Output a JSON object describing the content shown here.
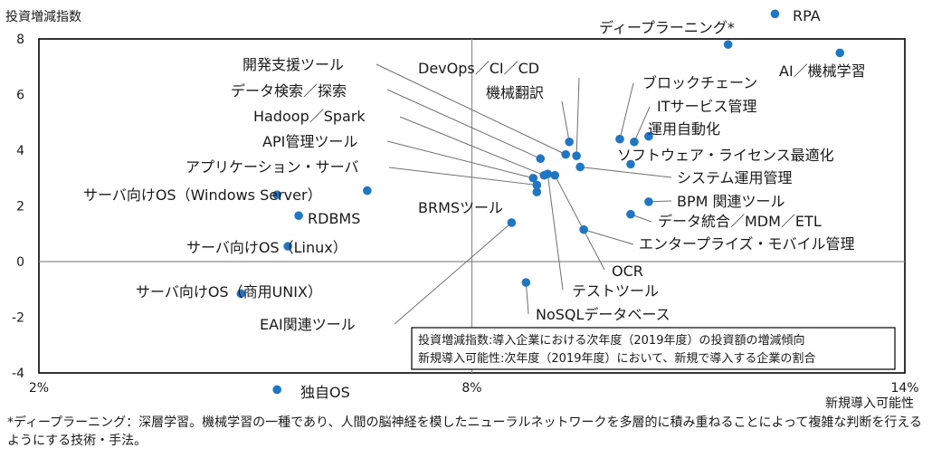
{
  "chart_data": {
    "type": "scatter",
    "title": "",
    "ylabel": "投資増減指数",
    "xlabel": "新規導入可能性",
    "xlim": [
      2,
      14
    ],
    "ylim": [
      -4,
      8
    ],
    "x_ticks": [
      "2%",
      "8%",
      "14%"
    ],
    "y_ticks": [
      "8",
      "6",
      "4",
      "2",
      "0",
      "-2",
      "-4"
    ],
    "crosshair": {
      "x": 8,
      "y": 0
    },
    "point_color": "#1f77c4",
    "points": [
      {
        "label": "RPA",
        "x": 12.2,
        "y": 8.9
      },
      {
        "label": "ディープラーニング*",
        "x": 11.55,
        "y": 7.8
      },
      {
        "label": "AI／機械学習",
        "x": 13.1,
        "y": 7.5
      },
      {
        "label": "開発支援ツール",
        "x": 9.3,
        "y": 3.85
      },
      {
        "label": "データ検索／探索",
        "x": 8.95,
        "y": 3.7
      },
      {
        "label": "DevOps／CI／CD",
        "x": 9.45,
        "y": 3.8
      },
      {
        "label": "機械翻訳",
        "x": 9.35,
        "y": 4.3
      },
      {
        "label": "ブロックチェーン",
        "x": 10.05,
        "y": 4.4
      },
      {
        "label": "ITサービス管理",
        "x": 10.25,
        "y": 4.3
      },
      {
        "label": "運用自動化",
        "x": 10.45,
        "y": 4.5
      },
      {
        "label": "ソフトウェア・ライセンス最適化",
        "x": 10.2,
        "y": 3.5
      },
      {
        "label": "Hadoop／Spark",
        "x": 9.0,
        "y": 3.1
      },
      {
        "label": "API管理ツール",
        "x": 8.85,
        "y": 3.0
      },
      {
        "label": "システム運用管理",
        "x": 9.5,
        "y": 3.4
      },
      {
        "label": "アプリケーション・サーバ",
        "x": 8.9,
        "y": 2.75
      },
      {
        "label": "BRMSツール",
        "x": 8.9,
        "y": 2.5
      },
      {
        "label": "BPM 関連ツール",
        "x": 10.45,
        "y": 2.15
      },
      {
        "label": "データ統合／MDM／ETL",
        "x": 10.2,
        "y": 1.7
      },
      {
        "label": "エンタープライズ・モバイル管理",
        "x": 9.55,
        "y": 1.15
      },
      {
        "label": "OCR",
        "x": 9.15,
        "y": 3.1
      },
      {
        "label": "テストツール",
        "x": 9.05,
        "y": 3.15
      },
      {
        "label": "EAI関連ツール",
        "x": 8.55,
        "y": 1.4
      },
      {
        "label": "NoSQLデータベース",
        "x": 8.75,
        "y": -0.75
      },
      {
        "label": "サーバ向けOS（Windows Server）",
        "x": 5.3,
        "y": 2.4
      },
      {
        "label": "",
        "x": 6.55,
        "y": 2.55
      },
      {
        "label": "RDBMS",
        "x": 5.6,
        "y": 1.65
      },
      {
        "label": "サーバ向けOS（Linux）",
        "x": 5.45,
        "y": 0.55
      },
      {
        "label": "サーバ向けOS（商用UNIX）",
        "x": 4.8,
        "y": -1.15
      },
      {
        "label": "独自OS",
        "x": 5.3,
        "y": -4.6
      }
    ],
    "legend_box": [
      "投資増減指数:導入企業における次年度（2019年度）の投資額の増減傾向",
      "新規導入可能性:次年度（2019年度）において、新規で導入する企業の割合"
    ]
  },
  "footnote": "*ディープラーニング：深層学習。機械学習の一種であり、人間の脳神経を模したニューラルネットワークを多層的に積み重ねることによって複雑な判断を行えるようにする技術・手法。"
}
